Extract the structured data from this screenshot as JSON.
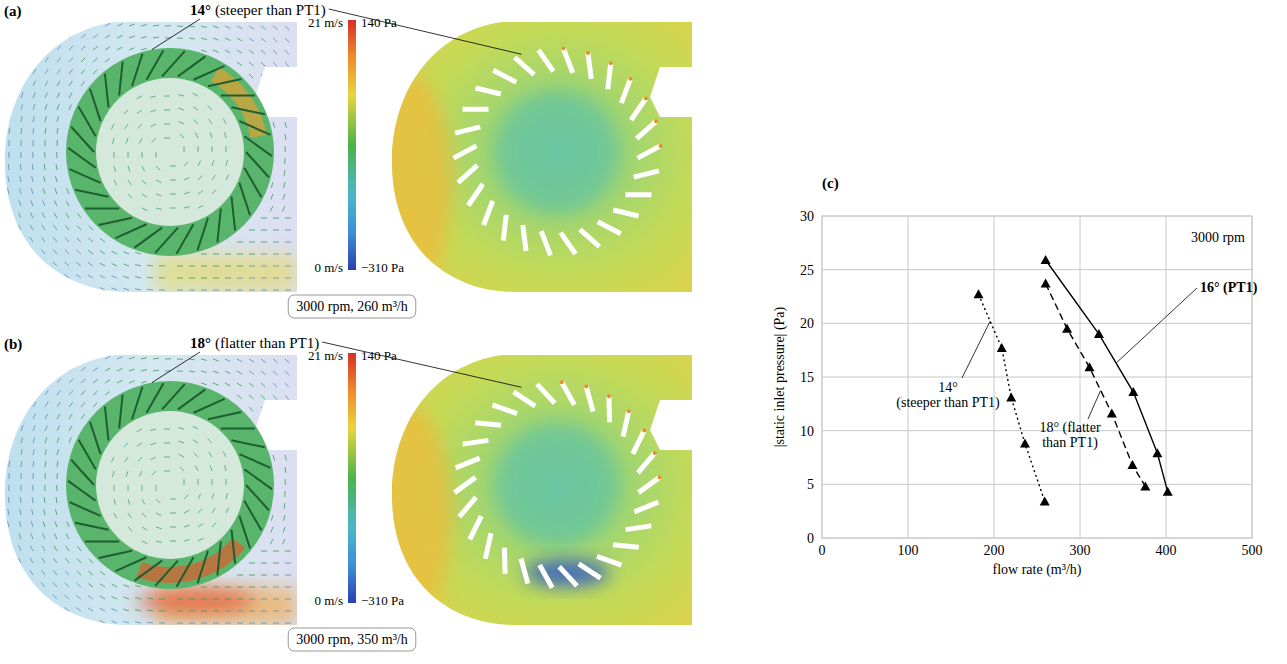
{
  "panels": [
    {
      "letter": "(a)",
      "blade_angle": "14°",
      "blade_note": "(steeper than PT1)",
      "colorbar": {
        "velocity_max": "21 m/s",
        "pressure_max": "140 Pa",
        "velocity_min": "0 m/s",
        "pressure_min": "−310 Pa"
      },
      "condition": "3000 rpm, 260 m³/h"
    },
    {
      "letter": "(b)",
      "blade_angle": "18°",
      "blade_note": "(flatter than PT1)",
      "colorbar": {
        "velocity_max": "21 m/s",
        "pressure_max": "140 Pa",
        "velocity_min": "0 m/s",
        "pressure_min": "−310 Pa"
      },
      "condition": "3000 rpm, 350 m³/h"
    }
  ],
  "chart_letter": "(c)",
  "chart_data": {
    "type": "line",
    "annotation": "3000 rpm",
    "x_label": "flow rate (m³/h)",
    "y_label": "|static inlet pressure| (Pa)",
    "xlim": [
      0,
      500
    ],
    "xticks": [
      0,
      100,
      200,
      300,
      400,
      500
    ],
    "ylim": [
      0,
      30
    ],
    "yticks": [
      0,
      5,
      10,
      15,
      20,
      25,
      30
    ],
    "grid": true,
    "series": [
      {
        "name": "16° (PT1)",
        "color": "#000000",
        "marker": "triangle",
        "line_style": "solid",
        "x": [
          260,
          322,
          362,
          390,
          402
        ],
        "values": [
          25.9,
          19,
          13.6,
          7.9,
          4.3
        ]
      },
      {
        "name": "14° (steeper than PT1)",
        "color": "#000000",
        "marker": "triangle",
        "line_style": "dotted",
        "x": [
          182,
          209,
          220,
          236,
          259
        ],
        "values": [
          22.7,
          17.7,
          13.1,
          8.8,
          3.4
        ]
      },
      {
        "name": "18° (flatter than PT1)",
        "color": "#000000",
        "marker": "triangle",
        "line_style": "dashed",
        "x": [
          260,
          285,
          311,
          337,
          361,
          376
        ],
        "values": [
          23.7,
          19.5,
          15.9,
          11.6,
          6.8,
          4.8
        ]
      }
    ]
  }
}
